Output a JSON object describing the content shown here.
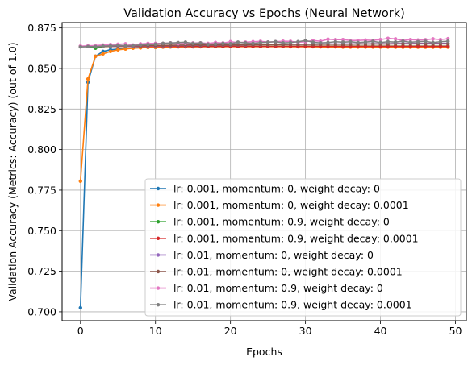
{
  "chart_data": {
    "type": "line",
    "title": "Validation Accuracy vs Epochs (Neural Network)",
    "xlabel": "Epochs",
    "ylabel": "Validation Accuracy (Metrics: Accuracy) (out of 1.0)",
    "xlim": [
      -2.45,
      51.45
    ],
    "ylim": [
      0.6945,
      0.8783
    ],
    "xticks": [
      0,
      10,
      20,
      30,
      40,
      50
    ],
    "yticks": [
      0.7,
      0.725,
      0.75,
      0.775,
      0.8,
      0.825,
      0.85,
      0.875
    ],
    "xtick_labels": [
      "0",
      "10",
      "20",
      "30",
      "40",
      "50"
    ],
    "ytick_labels": [
      "0.700",
      "0.725",
      "0.750",
      "0.775",
      "0.800",
      "0.825",
      "0.850",
      "0.875"
    ],
    "grid": true,
    "legend_position": "bottom-right",
    "x": [
      0,
      1,
      2,
      3,
      4,
      5,
      6,
      7,
      8,
      9,
      10,
      11,
      12,
      13,
      14,
      15,
      16,
      17,
      18,
      19,
      20,
      21,
      22,
      23,
      24,
      25,
      26,
      27,
      28,
      29,
      30,
      31,
      32,
      33,
      34,
      35,
      36,
      37,
      38,
      39,
      40,
      41,
      42,
      43,
      44,
      45,
      46,
      47,
      48,
      49
    ],
    "series": [
      {
        "name": "lr: 0.001, momentum: 0, weight decay: 0",
        "color": "#1f77b4",
        "values": [
          0.7025,
          0.8415,
          0.8575,
          0.8605,
          0.8615,
          0.862,
          0.8625,
          0.8627,
          0.863,
          0.863,
          0.863,
          0.8632,
          0.8633,
          0.8633,
          0.8634,
          0.8634,
          0.8635,
          0.8635,
          0.8635,
          0.8635,
          0.8636,
          0.8636,
          0.8636,
          0.8636,
          0.8635,
          0.8636,
          0.8636,
          0.8636,
          0.8636,
          0.8636,
          0.8636,
          0.8636,
          0.8636,
          0.8636,
          0.8636,
          0.8636,
          0.8636,
          0.8636,
          0.8636,
          0.8636,
          0.8636,
          0.8636,
          0.8636,
          0.8636,
          0.8636,
          0.8636,
          0.8636,
          0.8636,
          0.8636,
          0.8636
        ]
      },
      {
        "name": "lr: 0.001, momentum: 0, weight decay: 0.0001",
        "color": "#ff7f0e",
        "values": [
          0.7805,
          0.8435,
          0.8575,
          0.859,
          0.8605,
          0.8615,
          0.862,
          0.8625,
          0.8627,
          0.863,
          0.863,
          0.8632,
          0.8633,
          0.8633,
          0.8634,
          0.8634,
          0.8634,
          0.8635,
          0.8635,
          0.8635,
          0.8635,
          0.8635,
          0.8635,
          0.8635,
          0.8635,
          0.8635,
          0.8635,
          0.8635,
          0.8634,
          0.8634,
          0.8634,
          0.8634,
          0.8633,
          0.8633,
          0.8633,
          0.8632,
          0.8632,
          0.8632,
          0.8632,
          0.8632,
          0.8632,
          0.8632,
          0.8631,
          0.8631,
          0.8631,
          0.8631,
          0.8631,
          0.8631,
          0.8631,
          0.8631
        ]
      },
      {
        "name": "lr: 0.001, momentum: 0.9, weight decay: 0",
        "color": "#2ca02c",
        "values": [
          0.8635,
          0.8635,
          0.8625,
          0.8635,
          0.8637,
          0.8637,
          0.8637,
          0.8638,
          0.8638,
          0.8638,
          0.8638,
          0.8638,
          0.8638,
          0.8638,
          0.8638,
          0.8638,
          0.8638,
          0.8638,
          0.8638,
          0.8638,
          0.8638,
          0.8638,
          0.8638,
          0.8638,
          0.8638,
          0.8638,
          0.8638,
          0.8638,
          0.8638,
          0.8638,
          0.8638,
          0.8638,
          0.8638,
          0.8638,
          0.8638,
          0.8638,
          0.8638,
          0.8638,
          0.8638,
          0.8638,
          0.8638,
          0.8638,
          0.8638,
          0.8638,
          0.8638,
          0.8638,
          0.8638,
          0.8638,
          0.8638,
          0.8638
        ]
      },
      {
        "name": "lr: 0.001, momentum: 0.9, weight decay: 0.0001",
        "color": "#d62728",
        "values": [
          0.8637,
          0.8637,
          0.8637,
          0.8637,
          0.8637,
          0.8637,
          0.8637,
          0.8637,
          0.8637,
          0.8637,
          0.8637,
          0.8637,
          0.8637,
          0.8637,
          0.8637,
          0.8637,
          0.8637,
          0.8637,
          0.8637,
          0.8637,
          0.8637,
          0.8637,
          0.8637,
          0.8637,
          0.8637,
          0.8637,
          0.8637,
          0.8637,
          0.8637,
          0.8637,
          0.8637,
          0.8637,
          0.8637,
          0.8637,
          0.8637,
          0.8637,
          0.8637,
          0.8637,
          0.8637,
          0.8637,
          0.8637,
          0.8637,
          0.8637,
          0.8637,
          0.8637,
          0.8637,
          0.8637,
          0.8637,
          0.8637,
          0.8637
        ]
      },
      {
        "name": "lr: 0.01, momentum: 0, weight decay: 0",
        "color": "#9467bd",
        "values": [
          0.8637,
          0.8637,
          0.8637,
          0.8638,
          0.8638,
          0.8638,
          0.8639,
          0.8639,
          0.864,
          0.864,
          0.864,
          0.8641,
          0.8641,
          0.8642,
          0.8642,
          0.8643,
          0.8643,
          0.8644,
          0.8644,
          0.8645,
          0.8645,
          0.8646,
          0.8646,
          0.8647,
          0.8647,
          0.8648,
          0.8648,
          0.8648,
          0.8649,
          0.8649,
          0.865,
          0.865,
          0.865,
          0.8651,
          0.8651,
          0.8651,
          0.8652,
          0.8652,
          0.8652,
          0.8653,
          0.8653,
          0.8653,
          0.8654,
          0.8654,
          0.8654,
          0.8655,
          0.8655,
          0.8655,
          0.8655,
          0.8655
        ]
      },
      {
        "name": "lr: 0.01, momentum: 0, weight decay: 0.0001",
        "color": "#8c564b",
        "values": [
          0.8636,
          0.8637,
          0.8637,
          0.8638,
          0.8639,
          0.864,
          0.864,
          0.8641,
          0.8641,
          0.8642,
          0.8642,
          0.8643,
          0.8643,
          0.8644,
          0.8644,
          0.8645,
          0.8645,
          0.8645,
          0.8646,
          0.8646,
          0.8646,
          0.8647,
          0.8647,
          0.8647,
          0.8648,
          0.8648,
          0.8648,
          0.8648,
          0.8649,
          0.8649,
          0.8649,
          0.8649,
          0.865,
          0.865,
          0.865,
          0.865,
          0.865,
          0.8651,
          0.8651,
          0.8651,
          0.8651,
          0.8651,
          0.8652,
          0.8652,
          0.8652,
          0.8652,
          0.8652,
          0.8652,
          0.8652,
          0.8652
        ]
      },
      {
        "name": "lr: 0.01, momentum: 0.9, weight decay: 0",
        "color": "#e377c2",
        "values": [
          0.8638,
          0.864,
          0.8642,
          0.8645,
          0.8648,
          0.865,
          0.8652,
          0.8645,
          0.8652,
          0.8655,
          0.8655,
          0.8655,
          0.8658,
          0.8652,
          0.8655,
          0.8657,
          0.8658,
          0.8655,
          0.866,
          0.8657,
          0.8665,
          0.866,
          0.8662,
          0.8665,
          0.8667,
          0.8663,
          0.8665,
          0.8668,
          0.8667,
          0.8662,
          0.8665,
          0.8672,
          0.8668,
          0.868,
          0.8678,
          0.8678,
          0.8672,
          0.8673,
          0.8675,
          0.8673,
          0.8678,
          0.8685,
          0.8682,
          0.8672,
          0.8678,
          0.8675,
          0.8677,
          0.8682,
          0.8678,
          0.8683
        ]
      },
      {
        "name": "lr: 0.01, momentum: 0.9, weight decay: 0.0001",
        "color": "#7f7f7f",
        "values": [
          0.8633,
          0.8635,
          0.8635,
          0.8638,
          0.864,
          0.8643,
          0.864,
          0.8642,
          0.8645,
          0.8648,
          0.865,
          0.8655,
          0.8657,
          0.866,
          0.8662,
          0.8655,
          0.8657,
          0.865,
          0.8652,
          0.8655,
          0.8653,
          0.8662,
          0.8658,
          0.8655,
          0.866,
          0.8662,
          0.8665,
          0.8658,
          0.866,
          0.8665,
          0.8672,
          0.8662,
          0.8658,
          0.866,
          0.8665,
          0.8662,
          0.8665,
          0.866,
          0.8663,
          0.8667,
          0.866,
          0.8665,
          0.8663,
          0.8668,
          0.8662,
          0.8665,
          0.8667,
          0.866,
          0.8665,
          0.8668
        ]
      }
    ]
  }
}
